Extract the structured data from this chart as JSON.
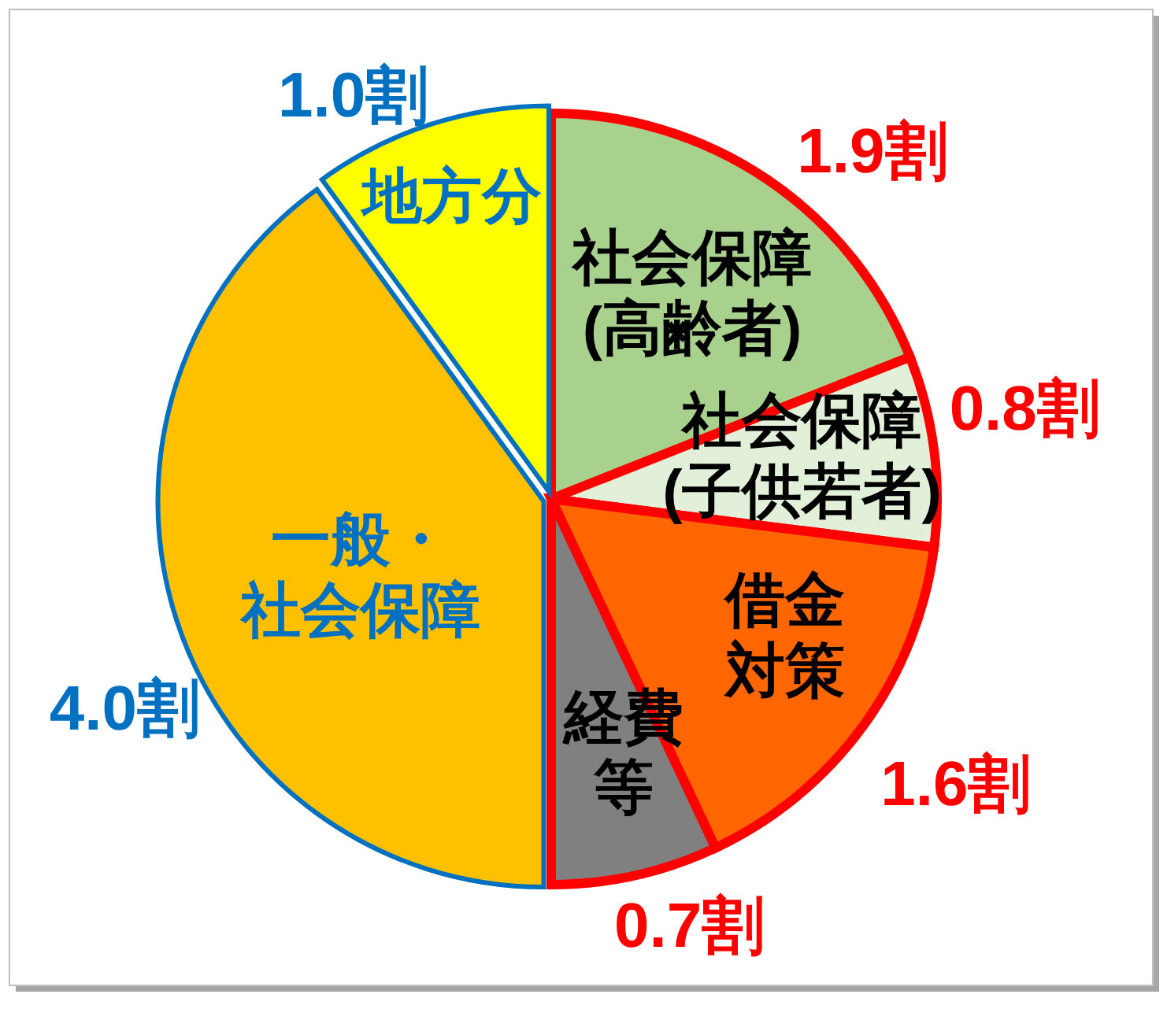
{
  "chart_data": {
    "type": "pie",
    "categories": [
      "社会保障(高齢者)",
      "社会保障(子供若者)",
      "借金対策",
      "経費等",
      "一般・社会保障",
      "地方分"
    ],
    "values": [
      1.9,
      0.8,
      1.6,
      0.7,
      4.0,
      1.0
    ],
    "colors": [
      "#a9d18e",
      "#e2f0d9",
      "#ff6600",
      "#808080",
      "#ffc000",
      "#ffff00"
    ],
    "value_labels": [
      "1.9割",
      "0.8割",
      "1.6割",
      "0.7割",
      "4.0割",
      "1.0割"
    ]
  }
}
